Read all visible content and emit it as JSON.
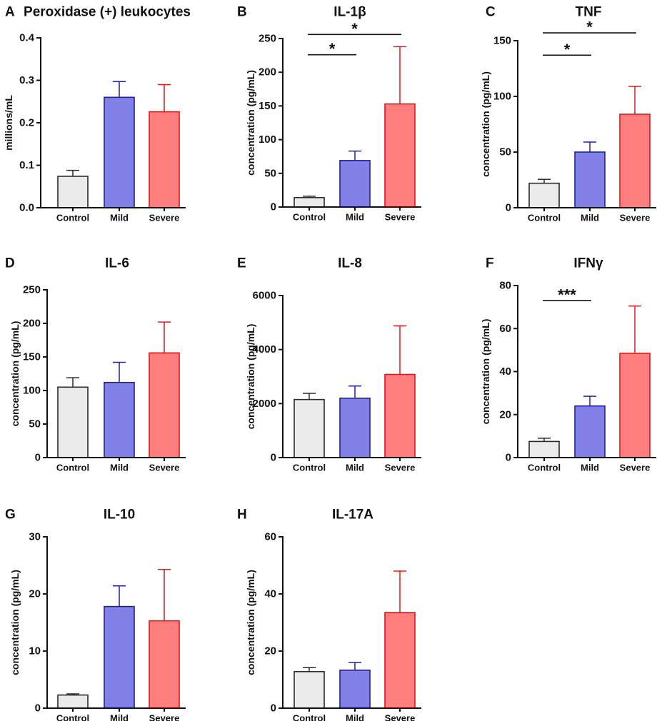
{
  "figure": {
    "colors": {
      "control_fill": "#ebebeb",
      "control_edge": "#2a2a2a",
      "mild_fill": "#8181e6",
      "mild_edge": "#2020a0",
      "severe_fill": "#ff7f7f",
      "severe_edge": "#e01818",
      "axis": "#111111"
    }
  },
  "chart_data": [
    {
      "id": "A",
      "panel_label": "A",
      "type": "bar",
      "title": "Peroxidase (+) leukocytes",
      "ylabel": "millions/mL",
      "categories": [
        "Control",
        "Mild",
        "Severe"
      ],
      "values": [
        0.074,
        0.26,
        0.226
      ],
      "errors": [
        0.014,
        0.037,
        0.064
      ],
      "ylim": [
        0,
        0.4
      ],
      "ticks": [
        0,
        0.1,
        0.2,
        0.3,
        0.4
      ],
      "tick_labels": [
        "0.0",
        "0.1",
        "0.2",
        "0.3",
        "0.4"
      ],
      "significance": []
    },
    {
      "id": "B",
      "panel_label": "B",
      "type": "bar",
      "title": "IL-1β",
      "ylabel": "concentration (pg/mL)",
      "categories": [
        "Control",
        "Mild",
        "Severe"
      ],
      "values": [
        14,
        69,
        153
      ],
      "errors": [
        2,
        14,
        85
      ],
      "ylim": [
        0,
        250
      ],
      "ticks": [
        0,
        50,
        100,
        150,
        200,
        250
      ],
      "tick_labels": [
        "0",
        "50",
        "100",
        "150",
        "200",
        "250"
      ],
      "significance": [
        {
          "from": 0,
          "to": 1,
          "label": "*",
          "y": 226
        },
        {
          "from": 0,
          "to": 2,
          "label": "*",
          "y": 256
        }
      ]
    },
    {
      "id": "C",
      "panel_label": "C",
      "type": "bar",
      "title": "TNF",
      "ylabel": "concentration (pg/mL)",
      "categories": [
        "Control",
        "Mild",
        "Severe"
      ],
      "values": [
        22,
        50,
        84
      ],
      "errors": [
        3.5,
        9,
        25
      ],
      "ylim": [
        0,
        150
      ],
      "ticks": [
        0,
        50,
        100,
        150
      ],
      "tick_labels": [
        "0",
        "50",
        "100",
        "150"
      ],
      "significance": [
        {
          "from": 0,
          "to": 1,
          "label": "*",
          "y": 137
        },
        {
          "from": 0,
          "to": 2,
          "label": "*",
          "y": 157
        }
      ]
    },
    {
      "id": "D",
      "panel_label": "D",
      "type": "bar",
      "title": "IL-6",
      "ylabel": "concentration (pg/mL)",
      "categories": [
        "Control",
        "Mild",
        "Severe"
      ],
      "values": [
        105,
        112,
        156
      ],
      "errors": [
        14,
        30,
        46
      ],
      "ylim": [
        0,
        250
      ],
      "ticks": [
        0,
        50,
        100,
        150,
        200,
        250
      ],
      "tick_labels": [
        "0",
        "50",
        "100",
        "150",
        "200",
        "250"
      ],
      "significance": []
    },
    {
      "id": "E",
      "panel_label": "E",
      "type": "bar",
      "title": "IL-8",
      "ylabel": "concentration (pg/mL)",
      "categories": [
        "Control",
        "Mild",
        "Severe"
      ],
      "values": [
        2150,
        2200,
        3080
      ],
      "errors": [
        230,
        450,
        1800
      ],
      "ylim": [
        0,
        6000
      ],
      "ticks": [
        0,
        2000,
        4000,
        6000
      ],
      "tick_labels": [
        "0",
        "2000",
        "4000",
        "6000"
      ],
      "significance": []
    },
    {
      "id": "F",
      "panel_label": "F",
      "type": "bar",
      "title": "IFNγ",
      "ylabel": "concentration (pg/mL)",
      "categories": [
        "Control",
        "Mild",
        "Severe"
      ],
      "values": [
        7.5,
        24,
        48.5
      ],
      "errors": [
        1.5,
        4.5,
        22
      ],
      "ylim": [
        0,
        80
      ],
      "ticks": [
        0,
        20,
        40,
        60,
        80
      ],
      "tick_labels": [
        "0",
        "20",
        "40",
        "60",
        "80"
      ],
      "significance": [
        {
          "from": 0,
          "to": 1,
          "label": "***",
          "y": 73
        }
      ]
    },
    {
      "id": "G",
      "panel_label": "G",
      "type": "bar",
      "title": "IL-10",
      "ylabel": "concentration (pg/mL)",
      "categories": [
        "Control",
        "Mild",
        "Severe"
      ],
      "values": [
        2.3,
        17.8,
        15.3
      ],
      "errors": [
        0.2,
        3.6,
        9
      ],
      "ylim": [
        0,
        30
      ],
      "ticks": [
        0,
        10,
        20,
        30
      ],
      "tick_labels": [
        "0",
        "10",
        "20",
        "30"
      ],
      "significance": []
    },
    {
      "id": "H",
      "panel_label": "H",
      "type": "bar",
      "title": "IL-17A",
      "ylabel": "concentration (pg/mL)",
      "categories": [
        "Control",
        "Mild",
        "Severe"
      ],
      "values": [
        12.8,
        13.3,
        33.5
      ],
      "errors": [
        1.4,
        2.7,
        14.5
      ],
      "ylim": [
        0,
        60
      ],
      "ticks": [
        0,
        20,
        40,
        60
      ],
      "tick_labels": [
        "0",
        "20",
        "40",
        "60"
      ],
      "significance": []
    }
  ]
}
